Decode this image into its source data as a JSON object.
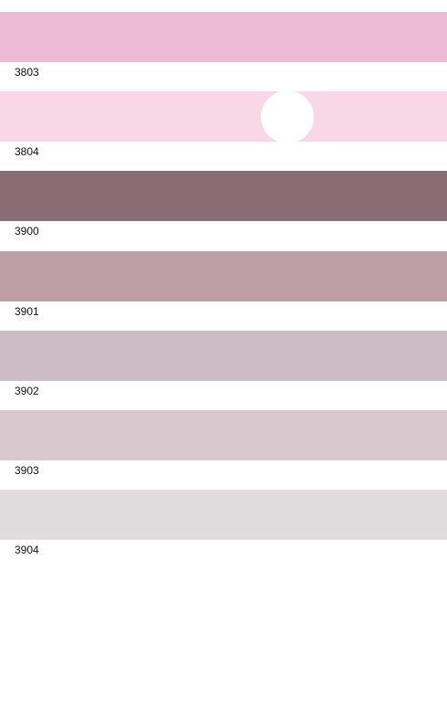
{
  "swatches": [
    {
      "label": "3803",
      "color": "#ecbad4"
    },
    {
      "label": "3804",
      "color": "#f7d8e4"
    },
    {
      "label": "3900",
      "color": "#8a6d74"
    },
    {
      "label": "3901",
      "color": "#bd9fa7"
    },
    {
      "label": "3902",
      "color": "#cbbcc5"
    },
    {
      "label": "3903",
      "color": "#d9c8ce"
    },
    {
      "label": "3904",
      "color": "#e0dcdd"
    }
  ]
}
